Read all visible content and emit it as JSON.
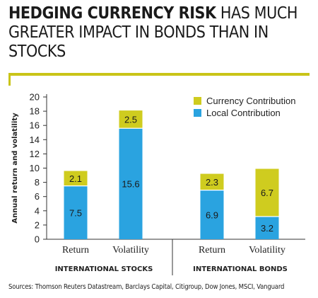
{
  "title_bold": "HEDGING CURRENCY RISK",
  "title_rest": " HAS MUCH GREATER IMPACT IN BONDS THAN IN STOCKS",
  "source": "Sources: Thomson Reuters Datastream, Barclays Capital, Citigroup, Dow Jones, MSCI, Vanguard",
  "colors": {
    "accent": "#c9c418",
    "currency": "#cfcc1f",
    "local": "#2aa3e0"
  },
  "chart_data": {
    "type": "bar",
    "stacked": true,
    "ylabel": "Annual return and volatility",
    "ylim": [
      0,
      20
    ],
    "yticks": [
      0,
      2,
      4,
      6,
      8,
      10,
      12,
      14,
      16,
      18,
      20
    ],
    "groups": [
      "INTERNATIONAL STOCKS",
      "INTERNATIONAL BONDS"
    ],
    "categories": [
      "Return",
      "Volatility",
      "Return",
      "Volatility"
    ],
    "category_group": [
      0,
      0,
      1,
      1
    ],
    "series": [
      {
        "name": "Local Contribution",
        "color": "#2aa3e0",
        "values": [
          7.5,
          15.6,
          6.9,
          3.2
        ]
      },
      {
        "name": "Currency Contribution",
        "color": "#cfcc1f",
        "values": [
          2.1,
          2.5,
          2.3,
          6.7
        ]
      }
    ],
    "legend": {
      "position": "top-right",
      "order": [
        "Currency Contribution",
        "Local Contribution"
      ]
    },
    "grid": false
  }
}
